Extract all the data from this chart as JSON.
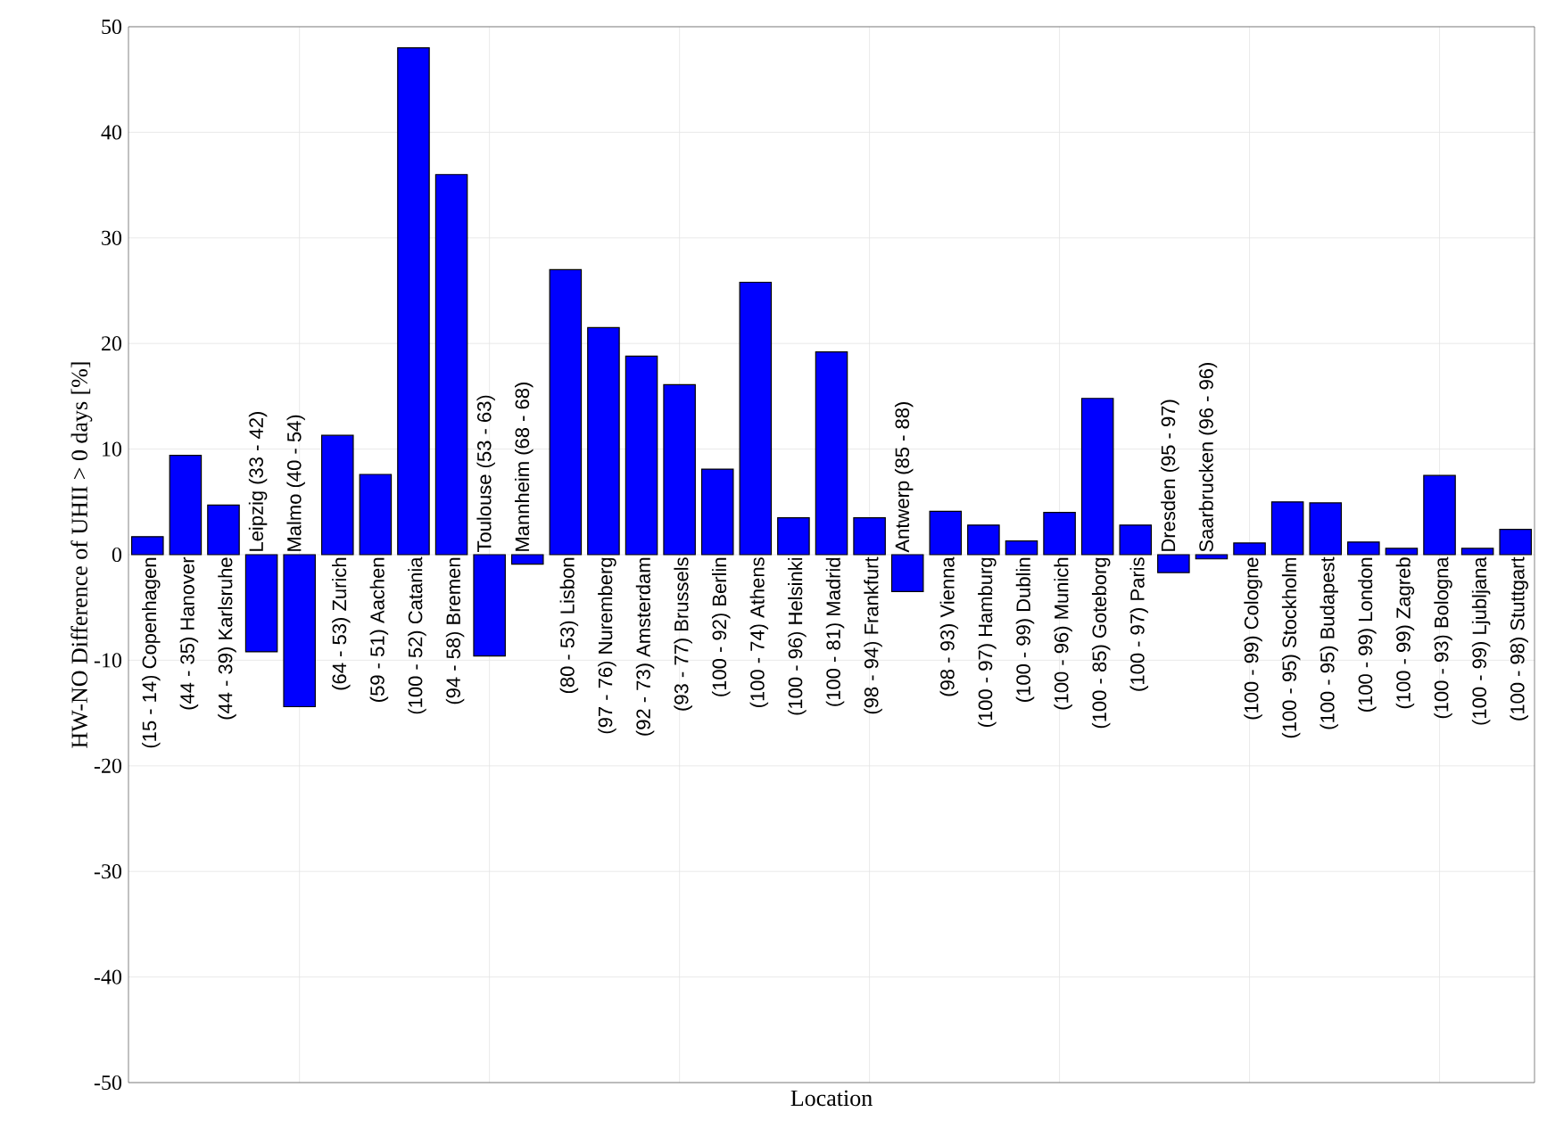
{
  "chart_data": {
    "type": "bar",
    "xlabel": "Location",
    "ylabel": "HW-NO Difference of UHII > 0 days [%]",
    "categories": [
      "(15 - 14) Copenhagen",
      "(44 - 35) Hanover",
      "(44 - 39) Karlsruhe",
      "Leipzig (33 - 42)",
      "Malmo (40 - 54)",
      "(64 - 53) Zurich",
      "(59 - 51) Aachen",
      "(100 - 52) Catania",
      "(94 - 58) Bremen",
      "Toulouse (53 - 63)",
      "Mannheim (68 - 68)",
      "(80 - 53) Lisbon",
      "(97 - 76) Nuremberg",
      "(92 - 73) Amsterdam",
      "(93 - 77) Brussels",
      "(100 - 92) Berlin",
      "(100 - 74) Athens",
      "(100 - 96) Helsinki",
      "(100 - 81) Madrid",
      "(98 - 94) Frankfurt",
      "Antwerp (85 - 88)",
      "(98 - 93) Vienna",
      "(100 - 97) Hamburg",
      "(100 - 99) Dublin",
      "(100 - 96) Munich",
      "(100 - 85) Goteborg",
      "(100 - 97) Paris",
      "Dresden (95 - 97)",
      "Saarbrucken (96 - 96)",
      "(100 - 99) Cologne",
      "(100 - 95) Stockholm",
      "(100 - 95) Budapest",
      "(100 - 99) London",
      "(100 - 99) Zagreb",
      "(100 - 93) Bologna",
      "(100 - 99) Ljubljana",
      "(100 - 98) Stuttgart"
    ],
    "values": [
      1.7,
      9.4,
      4.7,
      -9.2,
      -14.4,
      11.3,
      7.6,
      48,
      36,
      -9.6,
      -0.9,
      27,
      21.5,
      18.8,
      16.1,
      8.1,
      25.8,
      3.5,
      19.2,
      3.5,
      -3.5,
      4.1,
      2.8,
      1.3,
      4.0,
      14.8,
      2.8,
      -1.7,
      -0.4,
      1.1,
      5.0,
      4.9,
      1.2,
      0.6,
      7.5,
      0.6,
      2.4
    ],
    "color": "#0000ff",
    "ylim": [
      -50,
      50
    ],
    "yticks": [
      -50,
      -40,
      -30,
      -20,
      -10,
      0,
      10,
      20,
      30,
      40,
      50
    ],
    "grid": true
  }
}
